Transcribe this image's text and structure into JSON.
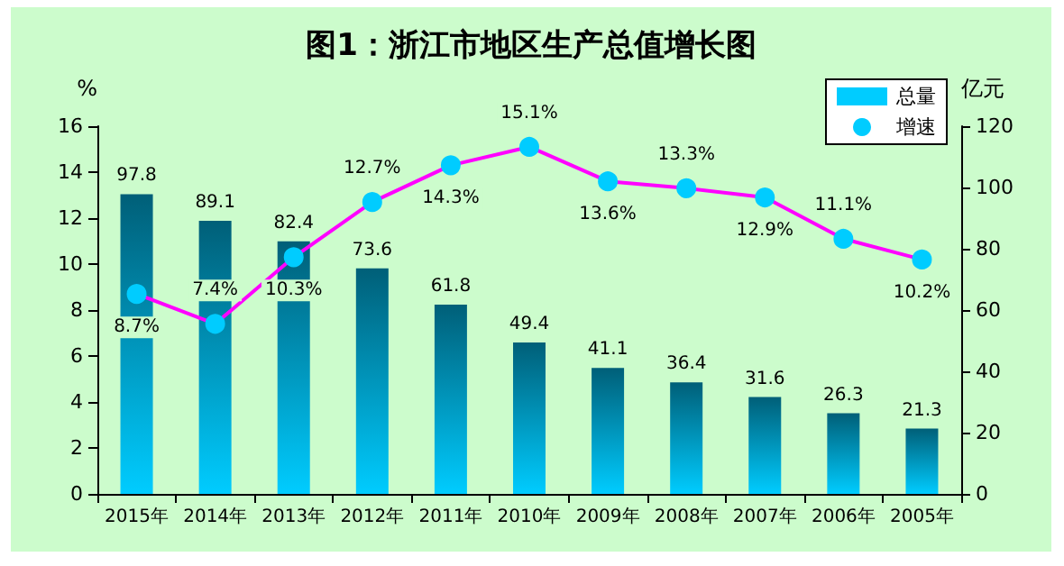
{
  "chart_data": {
    "type": "bar",
    "title": "图1：浙江市地区生产总值增长图",
    "ylabel": "%",
    "y2label": "亿元",
    "categories": [
      "2015年",
      "2014年",
      "2013年",
      "2012年",
      "2011年",
      "2010年",
      "2009年",
      "2008年",
      "2007年",
      "2006年",
      "2005年"
    ],
    "series": [
      {
        "name": "总量",
        "axis": "y2",
        "color": "#00ccff",
        "values": [
          97.8,
          89.1,
          82.4,
          73.6,
          61.8,
          49.4,
          41.1,
          36.4,
          31.6,
          26.3,
          21.3
        ],
        "value_labels": [
          "97.8",
          "89.1",
          "82.4",
          "73.6",
          "61.8",
          "49.4",
          "41.1",
          "36.4",
          "31.6",
          "26.3",
          "21.3"
        ]
      },
      {
        "name": "增速",
        "type": "line",
        "axis": "y",
        "color": "#ff00ff",
        "marker": "circle",
        "values": [
          8.7,
          7.4,
          10.3,
          12.7,
          14.3,
          15.1,
          13.6,
          13.3,
          12.9,
          11.1,
          10.2
        ],
        "value_labels": [
          "8.7%",
          "7.4%",
          "10.3%",
          "12.7%",
          "14.3%",
          "15.1%",
          "13.6%",
          "13.3%",
          "12.9%",
          "11.1%",
          "10.2%"
        ]
      }
    ],
    "ylim": [
      0,
      16
    ],
    "yticks": [
      0,
      2,
      4,
      6,
      8,
      10,
      12,
      14,
      16
    ],
    "y2lim": [
      0,
      120
    ],
    "y2ticks": [
      0,
      20,
      40,
      60,
      80,
      100,
      120
    ],
    "grid": false,
    "legend": "top right"
  }
}
